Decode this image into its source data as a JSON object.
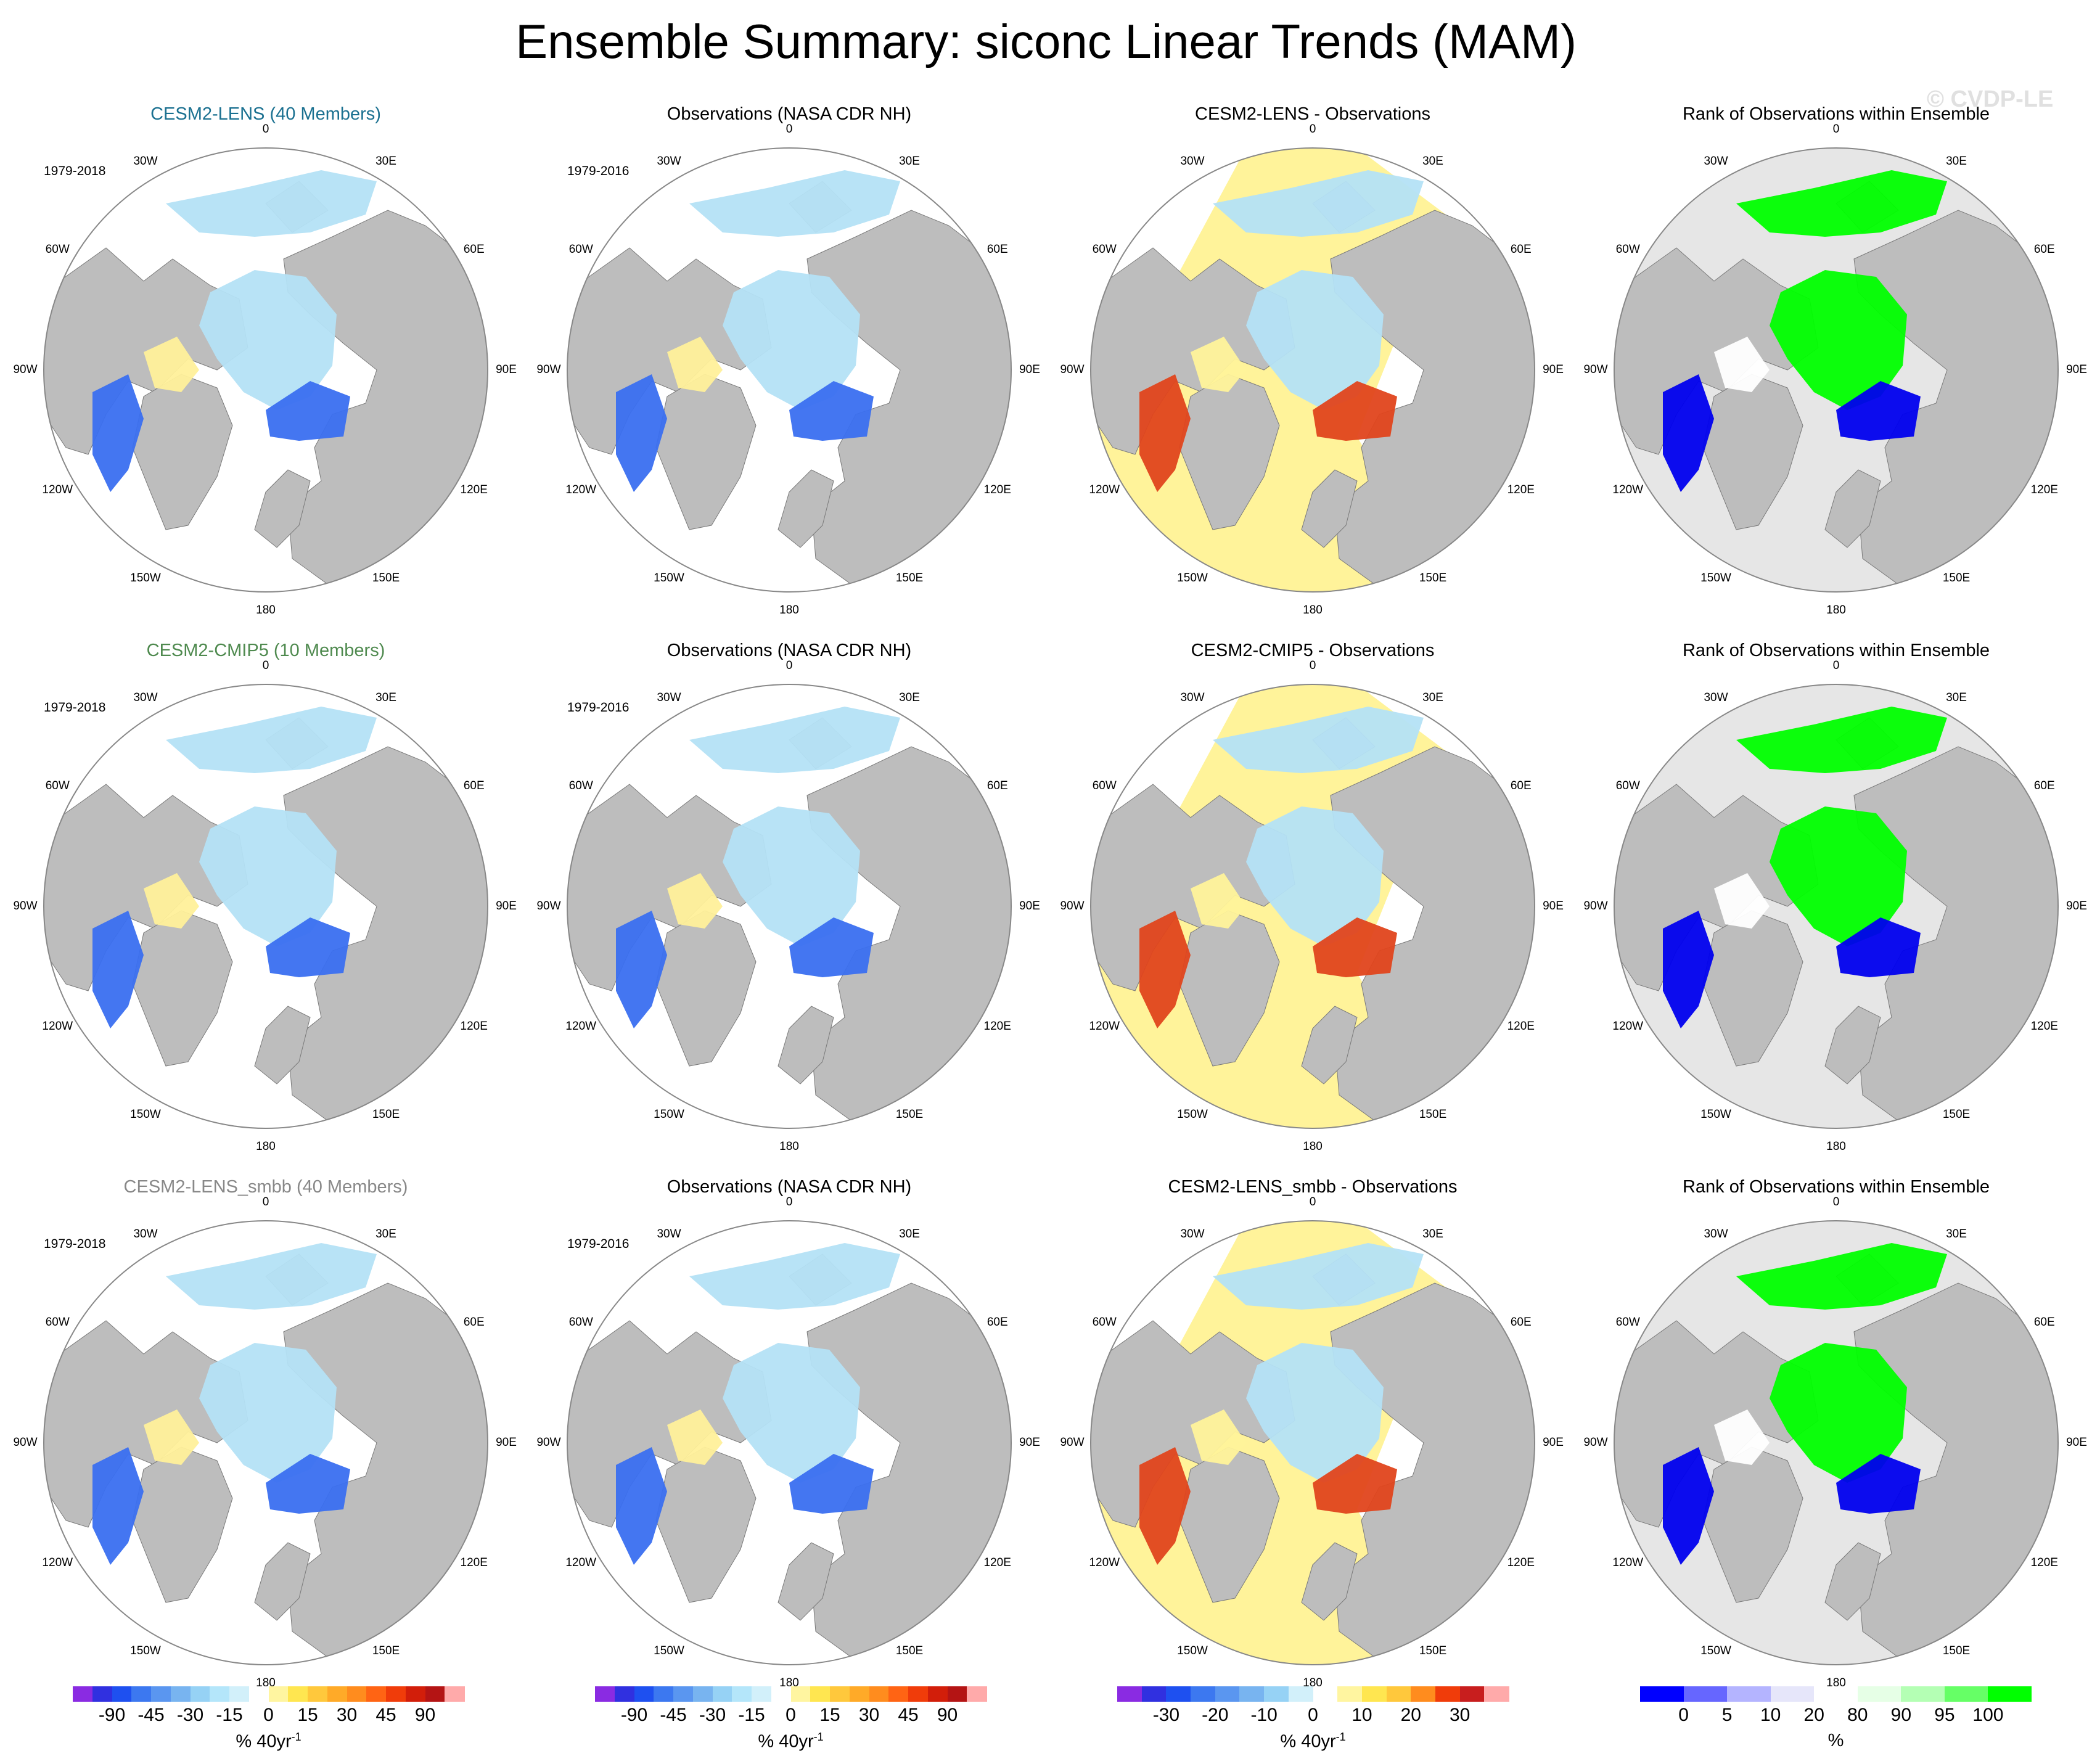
{
  "figure": {
    "title": "Ensemble Summary: siconc Linear Trends (MAM)",
    "watermark": "© CVDP-LE",
    "lon_labels": [
      "180",
      "150E",
      "120E",
      "90E",
      "60E",
      "30E",
      "0",
      "30W",
      "60W",
      "90W",
      "120W",
      "150W"
    ]
  },
  "chart_data": {
    "type": "heatmap",
    "projection": "north-polar-stereographic",
    "variable": "siconc",
    "season": "MAM",
    "panels": [
      {
        "row": 1,
        "col": 1,
        "title": "CESM2-LENS (40 Members)",
        "title_color": "#1a7090",
        "period": "1979-2018",
        "kind": "trend"
      },
      {
        "row": 1,
        "col": 2,
        "title": "Observations (NASA CDR NH)",
        "title_color": "#000000",
        "period": "1979-2016",
        "kind": "trend"
      },
      {
        "row": 1,
        "col": 3,
        "title": "CESM2-LENS - Observations",
        "title_color": "#000000",
        "period": "",
        "kind": "diff"
      },
      {
        "row": 1,
        "col": 4,
        "title": "Rank of Observations within Ensemble",
        "title_color": "#000000",
        "period": "",
        "kind": "rank"
      },
      {
        "row": 2,
        "col": 1,
        "title": "CESM2-CMIP5 (10 Members)",
        "title_color": "#4f8a4f",
        "period": "1979-2018",
        "kind": "trend"
      },
      {
        "row": 2,
        "col": 2,
        "title": "Observations (NASA CDR NH)",
        "title_color": "#000000",
        "period": "1979-2016",
        "kind": "trend"
      },
      {
        "row": 2,
        "col": 3,
        "title": "CESM2-CMIP5 - Observations",
        "title_color": "#000000",
        "period": "",
        "kind": "diff"
      },
      {
        "row": 2,
        "col": 4,
        "title": "Rank of Observations within Ensemble",
        "title_color": "#000000",
        "period": "",
        "kind": "rank"
      },
      {
        "row": 3,
        "col": 1,
        "title": "CESM2-LENS_smbb (40 Members)",
        "title_color": "#888888",
        "period": "1979-2018",
        "kind": "trend"
      },
      {
        "row": 3,
        "col": 2,
        "title": "Observations (NASA CDR NH)",
        "title_color": "#000000",
        "period": "1979-2016",
        "kind": "trend"
      },
      {
        "row": 3,
        "col": 3,
        "title": "CESM2-LENS_smbb - Observations",
        "title_color": "#000000",
        "period": "",
        "kind": "diff"
      },
      {
        "row": 3,
        "col": 4,
        "title": "Rank of Observations within Ensemble",
        "title_color": "#000000",
        "period": "",
        "kind": "rank"
      }
    ],
    "colorbars": [
      {
        "col": 1,
        "unit": "% 40yr",
        "unit_sup": "-1",
        "colors": [
          "#8a2be2",
          "#3030e0",
          "#1e50f0",
          "#3c78f0",
          "#5a96f0",
          "#78b4f0",
          "#96d2f5",
          "#b4e6fa",
          "#d2f0fa",
          "#ffffff",
          "#fff5a0",
          "#ffe650",
          "#ffc83c",
          "#ffaa28",
          "#ff8c1e",
          "#ff6414",
          "#f03c0a",
          "#d21e0a",
          "#b41414",
          "#ffaaaa"
        ],
        "ticks": [
          "-90",
          "-45",
          "-30",
          "-15",
          "0",
          "15",
          "30",
          "45",
          "90"
        ]
      },
      {
        "col": 2,
        "unit": "% 40yr",
        "unit_sup": "-1",
        "colors": [
          "#8a2be2",
          "#3030e0",
          "#1e50f0",
          "#3c78f0",
          "#5a96f0",
          "#78b4f0",
          "#96d2f5",
          "#b4e6fa",
          "#d2f0fa",
          "#ffffff",
          "#fff5a0",
          "#ffe650",
          "#ffc83c",
          "#ffaa28",
          "#ff8c1e",
          "#ff6414",
          "#f03c0a",
          "#d21e0a",
          "#b41414",
          "#ffaaaa"
        ],
        "ticks": [
          "-90",
          "-45",
          "-30",
          "-15",
          "0",
          "15",
          "30",
          "45",
          "90"
        ]
      },
      {
        "col": 3,
        "unit": "% 40yr",
        "unit_sup": "-1",
        "colors": [
          "#8a2be2",
          "#3030e0",
          "#1e50f0",
          "#3c78f0",
          "#5a96f0",
          "#78b4f0",
          "#96d2f5",
          "#d2f0fa",
          "#ffffff",
          "#fff5a0",
          "#ffe650",
          "#ffc83c",
          "#ff8c1e",
          "#f03c0a",
          "#c81e1e",
          "#ffaaaa"
        ],
        "ticks": [
          "-30",
          "-20",
          "-10",
          "0",
          "10",
          "20",
          "30"
        ]
      },
      {
        "col": 4,
        "unit": "%",
        "unit_sup": "",
        "colors": [
          "#0000ff",
          "#6666ff",
          "#b4b4ff",
          "#e6e6fa",
          "#ffffff",
          "#e6ffe6",
          "#b4ffb4",
          "#66ff66",
          "#00ff00"
        ],
        "ticks": [
          "0",
          "5",
          "10",
          "20",
          "80",
          "90",
          "95",
          "100"
        ]
      }
    ]
  }
}
